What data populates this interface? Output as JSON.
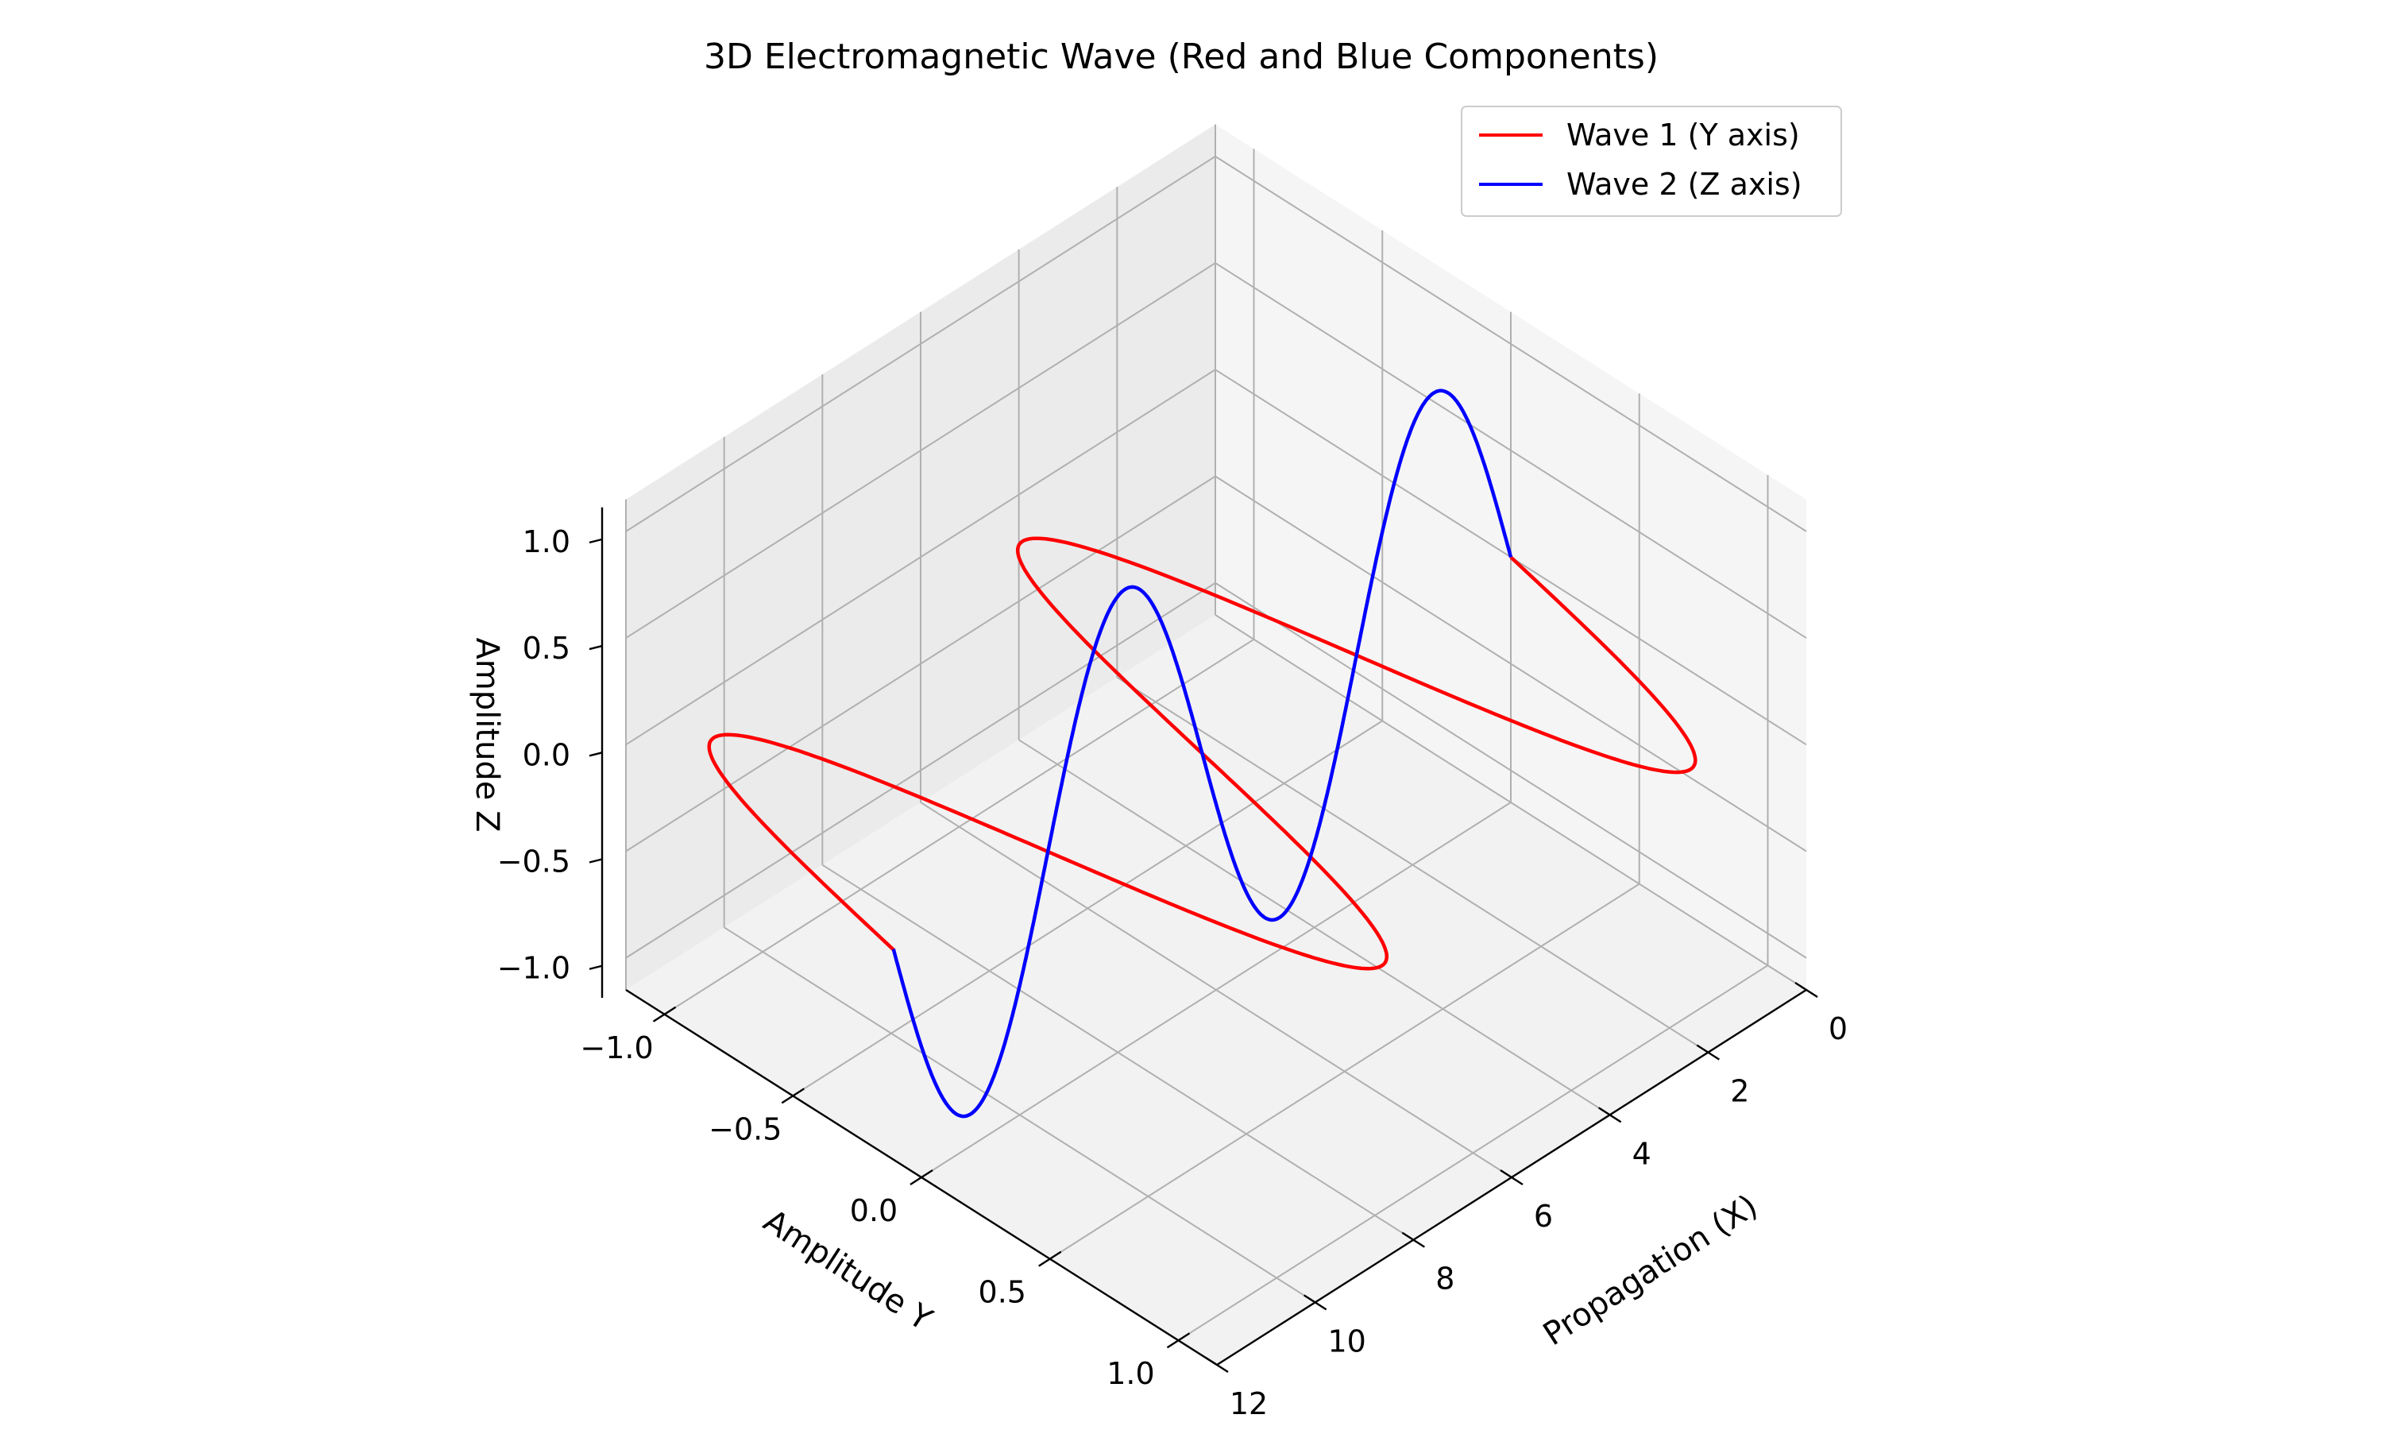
{
  "chart_data": {
    "type": "line",
    "projection": "3d",
    "title": "3D Electromagnetic Wave (Red and Blue Components)",
    "xlabel": "Propagation (X)",
    "ylabel": "Amplitude Y",
    "zlabel": "Amplitude Z",
    "xlim": [
      0,
      12
    ],
    "ylim": [
      -1.15,
      1.15
    ],
    "zlim": [
      -1.15,
      1.15
    ],
    "xticks": [
      0,
      2,
      4,
      6,
      8,
      10,
      12
    ],
    "xtick_labels": [
      "0",
      "2",
      "4",
      "6",
      "8",
      "10",
      "12"
    ],
    "yticks": [
      -1.0,
      -0.5,
      0.0,
      0.5,
      1.0
    ],
    "ytick_labels": [
      "−1.0",
      "−0.5",
      "0.0",
      "0.5",
      "1.0"
    ],
    "zticks": [
      -1.0,
      -0.5,
      0.0,
      0.5,
      1.0
    ],
    "ztick_labels": [
      "−1.0",
      "−0.5",
      "0.0",
      "0.5",
      "1.0"
    ],
    "grid": true,
    "legend_position": "top-right",
    "x_range": [
      0,
      12.57
    ],
    "series": [
      {
        "name": "Wave 1 (Y axis)",
        "color": "#ff0000",
        "function": "y = sin(x), z = 0"
      },
      {
        "name": "Wave 2 (Z axis)",
        "color": "#0000ff",
        "function": "z = sin(x), y = 0"
      }
    ],
    "view": {
      "elev": 30,
      "azim": 45
    }
  }
}
